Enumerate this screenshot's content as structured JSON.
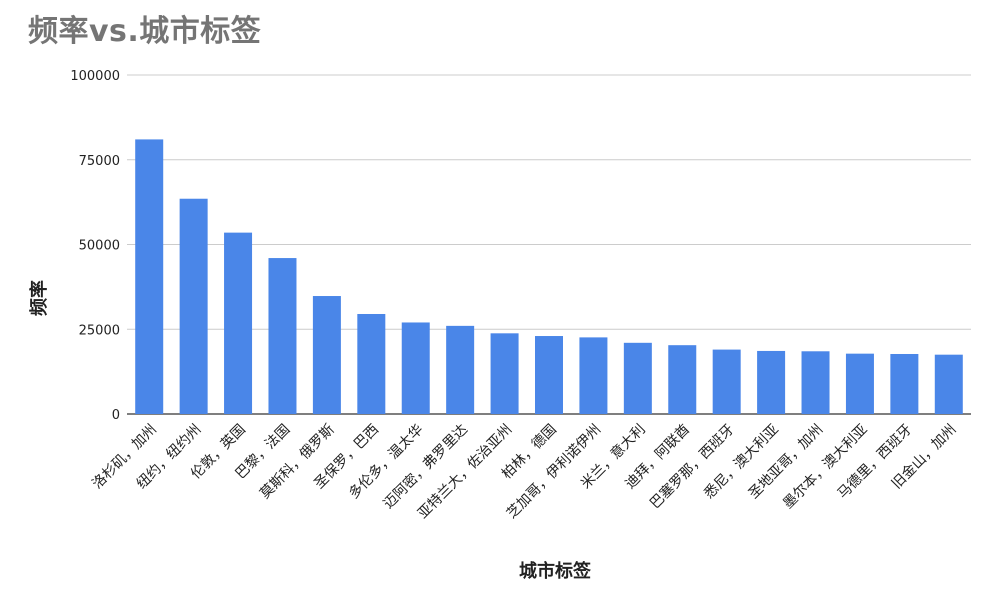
{
  "chart_data": {
    "type": "bar",
    "title": "频率vs.城市标签",
    "xlabel": "城市标签",
    "ylabel": "频率",
    "ylim": [
      0,
      100000
    ],
    "yticks": [
      "0",
      "25000",
      "50000",
      "75000",
      "100000"
    ],
    "ytick_values": [
      0,
      25000,
      50000,
      75000,
      100000
    ],
    "grid": true,
    "bar_color": "#4a86e8",
    "categories": [
      "洛杉矶，加州",
      "纽约，纽约州",
      "伦敦，英国",
      "巴黎，法国",
      "莫斯科，俄罗斯",
      "圣保罗，巴西",
      "多伦多，温太华",
      "迈阿密，弗罗里达",
      "亚特兰大，佐治亚州",
      "柏林，德国",
      "芝加哥，伊利诺伊州",
      "米兰，意大利",
      "迪拜，阿联酋",
      "巴塞罗那，西班牙",
      "悉尼，澳大利亚",
      "圣地亚哥，加州",
      "墨尔本，澳大利亚",
      "马德里，西班牙",
      "旧金山，加州"
    ],
    "values": [
      81000,
      63500,
      53500,
      46000,
      34800,
      29500,
      27000,
      26000,
      23800,
      23000,
      22600,
      21000,
      20300,
      19000,
      18600,
      18500,
      17800,
      17700,
      17500
    ]
  }
}
